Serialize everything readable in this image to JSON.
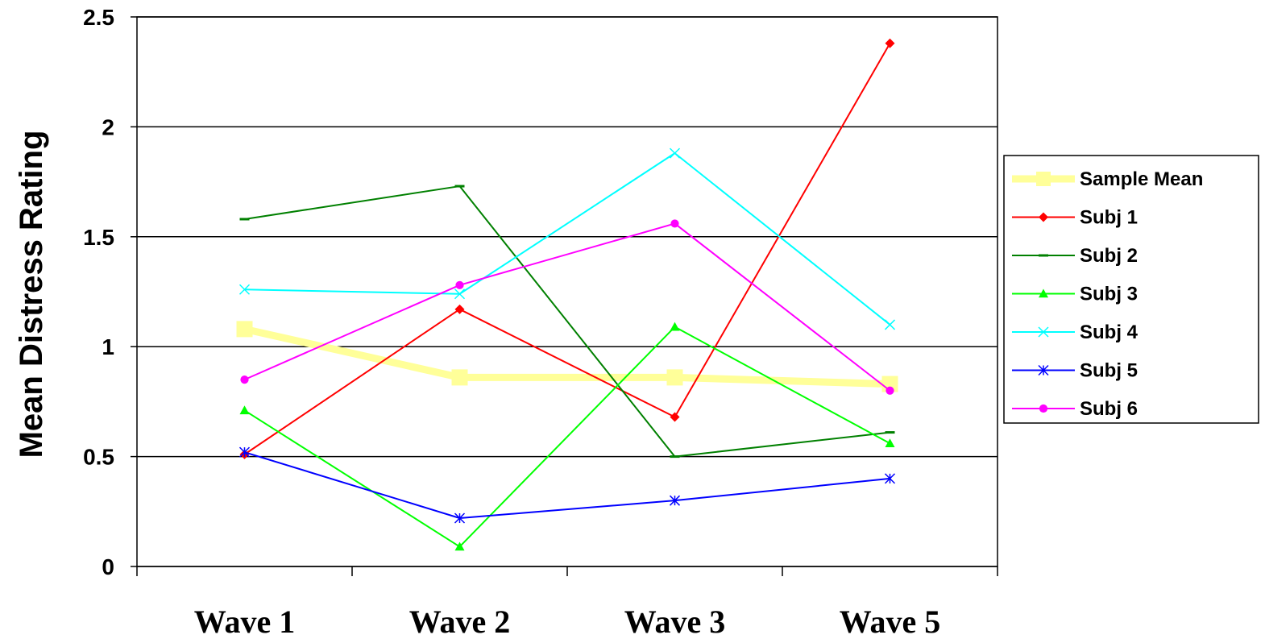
{
  "chart_data": {
    "type": "line",
    "title": "",
    "xlabel": "",
    "ylabel": "Mean Distress Rating",
    "categories": [
      "Wave 1",
      "Wave 2",
      "Wave 3",
      "Wave 5"
    ],
    "ylim": [
      0,
      2.5
    ],
    "yticks": [
      "0",
      "0.5",
      "1",
      "1.5",
      "2",
      "2.5"
    ],
    "grid": "horizontal",
    "legend_position": "right",
    "series": [
      {
        "name": "Sample Mean",
        "values": [
          1.08,
          0.86,
          0.86,
          0.83
        ],
        "color": "#FFFF99",
        "marker": "square",
        "width": 9
      },
      {
        "name": "Subj 1",
        "values": [
          0.51,
          1.17,
          0.68,
          2.38
        ],
        "color": "#FF0000",
        "marker": "diamond",
        "width": 2
      },
      {
        "name": "Subj 2",
        "values": [
          1.58,
          1.73,
          0.5,
          0.61
        ],
        "color": "#008000",
        "marker": "dash",
        "width": 2
      },
      {
        "name": "Subj 3",
        "values": [
          0.71,
          0.09,
          1.09,
          0.56
        ],
        "color": "#00FF00",
        "marker": "triangle",
        "width": 2
      },
      {
        "name": "Subj 4",
        "values": [
          1.26,
          1.24,
          1.88,
          1.1
        ],
        "color": "#00FFFF",
        "marker": "x",
        "width": 2
      },
      {
        "name": "Subj 5",
        "values": [
          0.52,
          0.22,
          0.3,
          0.4
        ],
        "color": "#0000FF",
        "marker": "star",
        "width": 2
      },
      {
        "name": "Subj 6",
        "values": [
          0.85,
          1.28,
          1.56,
          0.8
        ],
        "color": "#FF00FF",
        "marker": "circle",
        "width": 2
      }
    ]
  }
}
